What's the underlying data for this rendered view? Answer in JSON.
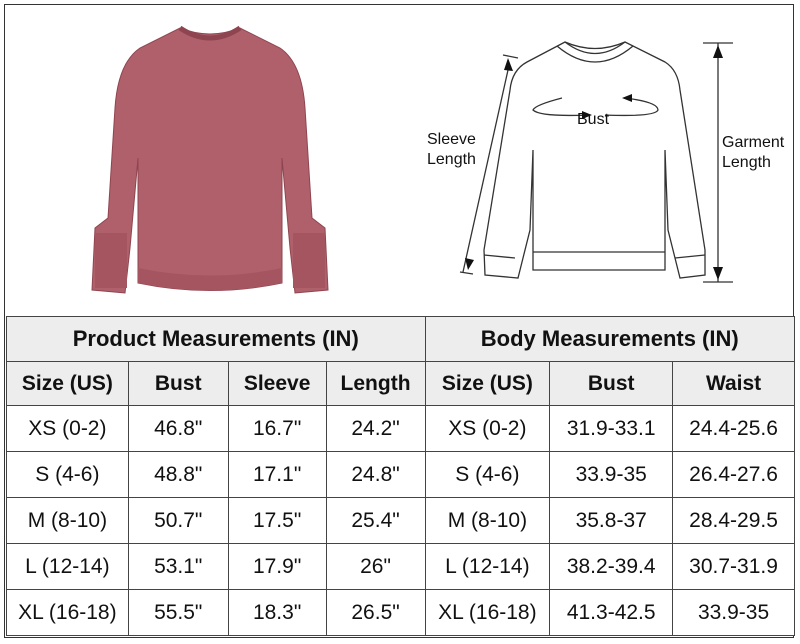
{
  "colors": {
    "sweater": "#b0606a",
    "header_bg": "#ededed"
  },
  "diagram": {
    "sleeve_label_1": "Sleeve",
    "sleeve_label_2": "Length",
    "bust_label": "Bust",
    "garment_label_1": "Garment",
    "garment_label_2": "Length"
  },
  "table": {
    "group_headers": [
      "Product Measurements (IN)",
      "Body Measurements (IN)"
    ],
    "columns": [
      "Size (US)",
      "Bust",
      "Sleeve",
      "Length",
      "Size (US)",
      "Bust",
      "Waist"
    ],
    "rows": [
      [
        "XS (0-2)",
        "46.8\"",
        "16.7\"",
        "24.2\"",
        "XS (0-2)",
        "31.9-33.1",
        "24.4-25.6"
      ],
      [
        "S (4-6)",
        "48.8\"",
        "17.1\"",
        "24.8\"",
        "S (4-6)",
        "33.9-35",
        "26.4-27.6"
      ],
      [
        "M (8-10)",
        "50.7\"",
        "17.5\"",
        "25.4\"",
        "M (8-10)",
        "35.8-37",
        "28.4-29.5"
      ],
      [
        "L (12-14)",
        "53.1\"",
        "17.9\"",
        "26\"",
        "L (12-14)",
        "38.2-39.4",
        "30.7-31.9"
      ],
      [
        "XL (16-18)",
        "55.5\"",
        "18.3\"",
        "26.5\"",
        "XL (16-18)",
        "41.3-42.5",
        "33.9-35"
      ]
    ]
  }
}
